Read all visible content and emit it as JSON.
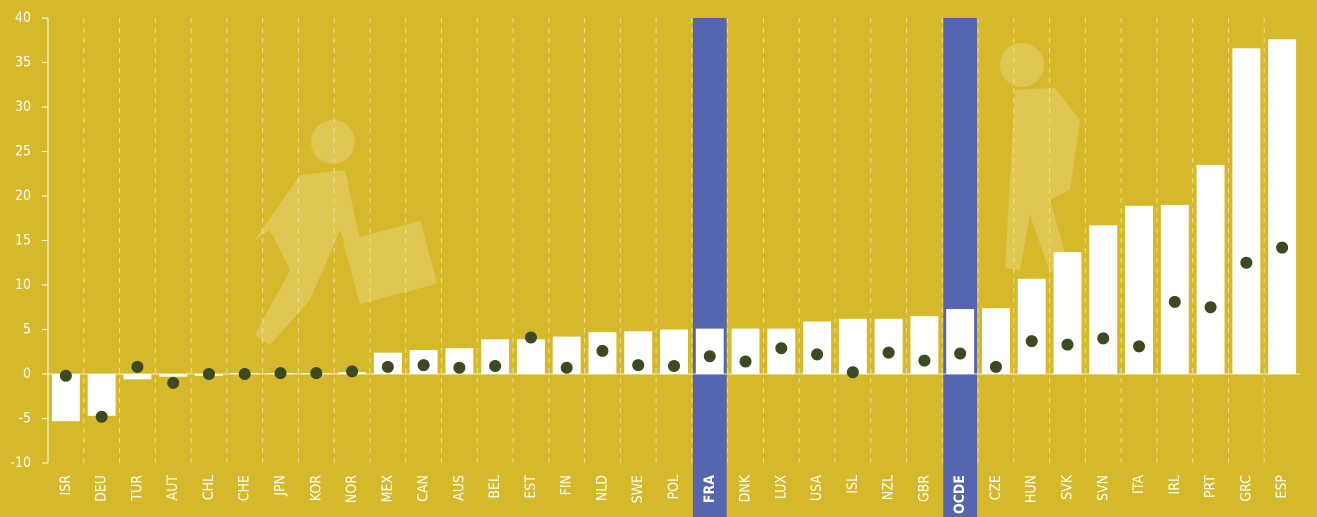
{
  "chart_data": {
    "type": "bar-dot",
    "categories": [
      "ISR",
      "DEU",
      "TUR",
      "AUT",
      "CHL",
      "CHE",
      "JPN",
      "KOR",
      "NOR",
      "MEX",
      "CAN",
      "AUS",
      "BEL",
      "EST",
      "FIN",
      "NLD",
      "SWE",
      "POL",
      "FRA",
      "DNK",
      "LUX",
      "USA",
      "ISL",
      "NZL",
      "GBR",
      "OCDE",
      "CZE",
      "HUN",
      "SVK",
      "SVN",
      "ITA",
      "IRL",
      "PRT",
      "GRC",
      "ESP"
    ],
    "series": [
      {
        "mark": "bar",
        "color": "#ffffff",
        "values": [
          -5.3,
          -4.7,
          -0.6,
          -0.3,
          -0.2,
          0.1,
          0.1,
          0.1,
          0.2,
          2.4,
          2.7,
          2.9,
          3.9,
          3.9,
          4.2,
          4.7,
          4.8,
          5.0,
          5.1,
          5.1,
          5.1,
          5.9,
          6.2,
          6.2,
          6.5,
          7.3,
          7.4,
          10.7,
          13.7,
          16.7,
          18.9,
          19.0,
          23.5,
          36.6,
          37.6
        ]
      },
      {
        "mark": "dot",
        "color": "#3b4a1f",
        "values": [
          -0.2,
          -4.8,
          0.8,
          -1.0,
          0.0,
          0.0,
          0.1,
          0.1,
          0.3,
          0.8,
          1.0,
          0.7,
          0.9,
          4.1,
          0.7,
          2.6,
          1.0,
          0.9,
          2.0,
          1.4,
          2.9,
          2.2,
          0.2,
          2.4,
          1.5,
          2.3,
          0.8,
          3.7,
          3.3,
          4.0,
          3.1,
          8.1,
          7.5,
          12.5,
          14.2
        ]
      }
    ],
    "highlight": [
      18,
      25
    ],
    "highlight_color": "#5565b0",
    "ylim": [
      -10,
      40
    ],
    "yticks": [
      -10,
      -5,
      0,
      5,
      10,
      15,
      20,
      25,
      30,
      35,
      40
    ]
  }
}
